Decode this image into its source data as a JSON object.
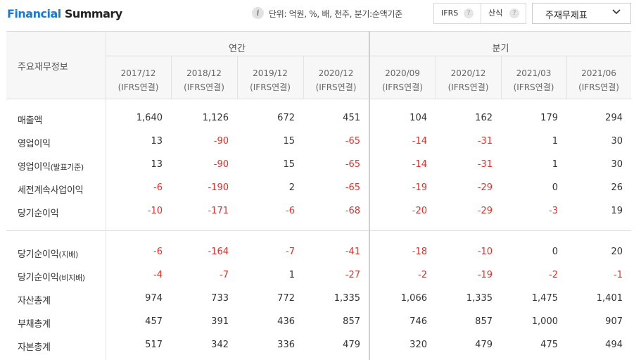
{
  "header": {
    "title_part1": "Financial",
    "title_part2": "Summary",
    "info_icon": "info-icon",
    "unit_text": "단위: 억원, %, 배, 천주, 분기:순액기준",
    "basis_options": [
      {
        "label": "IFRS",
        "help": "?"
      },
      {
        "label": "산식",
        "help": "?"
      }
    ],
    "select_value": "주재무제표"
  },
  "table": {
    "corner_label": "주요재무정보",
    "groups": [
      {
        "label": "연간"
      },
      {
        "label": "분기"
      }
    ],
    "periods": [
      {
        "date": "2017/12",
        "basis": "(IFRS연결)"
      },
      {
        "date": "2018/12",
        "basis": "(IFRS연결)"
      },
      {
        "date": "2019/12",
        "basis": "(IFRS연결)"
      },
      {
        "date": "2020/12",
        "basis": "(IFRS연결)"
      },
      {
        "date": "2020/09",
        "basis": "(IFRS연결)"
      },
      {
        "date": "2020/12",
        "basis": "(IFRS연결)"
      },
      {
        "date": "2021/03",
        "basis": "(IFRS연결)"
      },
      {
        "date": "2021/06",
        "basis": "(IFRS연결)"
      }
    ],
    "rows": [
      {
        "label": "매출액",
        "sub": "",
        "values": [
          "1,640",
          "1,126",
          "672",
          "451",
          "104",
          "162",
          "179",
          "294"
        ]
      },
      {
        "label": "영업이익",
        "sub": "",
        "values": [
          "13",
          "-90",
          "15",
          "-65",
          "-14",
          "-31",
          "1",
          "30"
        ]
      },
      {
        "label": "영업이익",
        "sub": "(발표기준)",
        "values": [
          "13",
          "-90",
          "15",
          "-65",
          "-14",
          "-31",
          "1",
          "30"
        ]
      },
      {
        "label": "세전계속사업이익",
        "sub": "",
        "values": [
          "-6",
          "-190",
          "2",
          "-65",
          "-19",
          "-29",
          "0",
          "26"
        ]
      },
      {
        "label": "당기순이익",
        "sub": "",
        "values": [
          "-10",
          "-171",
          "-6",
          "-68",
          "-20",
          "-29",
          "-3",
          "19"
        ]
      },
      {
        "label": "당기순이익",
        "sub": "(지배)",
        "values": [
          "-6",
          "-164",
          "-7",
          "-41",
          "-18",
          "-10",
          "0",
          "20"
        ]
      },
      {
        "label": "당기순이익",
        "sub": "(비지배)",
        "values": [
          "-4",
          "-7",
          "1",
          "-27",
          "-2",
          "-19",
          "-2",
          "-1"
        ]
      },
      {
        "label": "자산총계",
        "sub": "",
        "values": [
          "974",
          "733",
          "772",
          "1,335",
          "1,066",
          "1,335",
          "1,475",
          "1,401"
        ]
      },
      {
        "label": "부채총계",
        "sub": "",
        "values": [
          "457",
          "391",
          "436",
          "857",
          "746",
          "857",
          "1,000",
          "907"
        ]
      },
      {
        "label": "자본총계",
        "sub": "",
        "values": [
          "517",
          "342",
          "336",
          "479",
          "320",
          "479",
          "475",
          "494"
        ]
      }
    ],
    "negative_color": "#e0312b",
    "accent_color": "#1a7ad9"
  }
}
